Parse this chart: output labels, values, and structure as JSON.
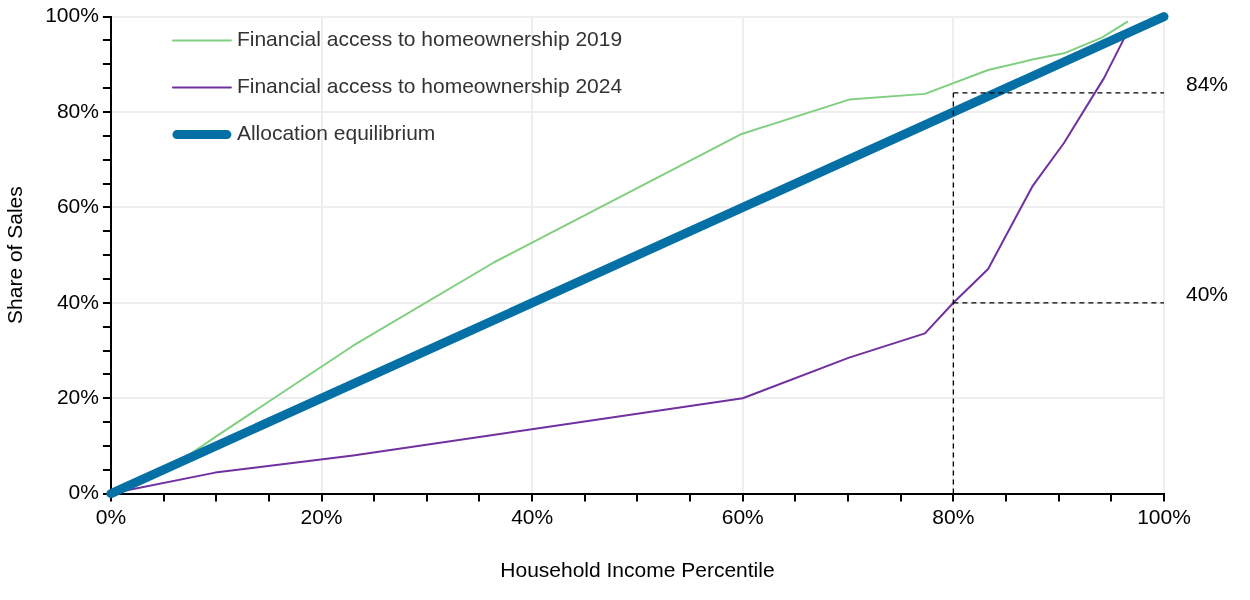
{
  "chart_data": {
    "type": "line",
    "xlabel": "Household Income Percentile",
    "ylabel": "Share of Sales",
    "xlim": [
      0,
      100
    ],
    "ylim": [
      0,
      100
    ],
    "xticks": [
      {
        "value": 0,
        "label": "0%"
      },
      {
        "value": 5,
        "label": null
      },
      {
        "value": 10,
        "label": null
      },
      {
        "value": 15,
        "label": null
      },
      {
        "value": 20,
        "label": "20%"
      },
      {
        "value": 25,
        "label": null
      },
      {
        "value": 30,
        "label": null
      },
      {
        "value": 35,
        "label": null
      },
      {
        "value": 40,
        "label": "40%"
      },
      {
        "value": 45,
        "label": null
      },
      {
        "value": 50,
        "label": null
      },
      {
        "value": 55,
        "label": null
      },
      {
        "value": 60,
        "label": "60%"
      },
      {
        "value": 65,
        "label": null
      },
      {
        "value": 70,
        "label": null
      },
      {
        "value": 75,
        "label": null
      },
      {
        "value": 80,
        "label": "80%"
      },
      {
        "value": 85,
        "label": null
      },
      {
        "value": 90,
        "label": null
      },
      {
        "value": 95,
        "label": null
      },
      {
        "value": 100,
        "label": "100%"
      }
    ],
    "yticks": [
      {
        "value": 0,
        "label": "0%"
      },
      {
        "value": 5,
        "label": null
      },
      {
        "value": 10,
        "label": null
      },
      {
        "value": 15,
        "label": null
      },
      {
        "value": 20,
        "label": "20%"
      },
      {
        "value": 25,
        "label": null
      },
      {
        "value": 30,
        "label": null
      },
      {
        "value": 35,
        "label": null
      },
      {
        "value": 40,
        "label": "40%"
      },
      {
        "value": 45,
        "label": null
      },
      {
        "value": 50,
        "label": null
      },
      {
        "value": 55,
        "label": null
      },
      {
        "value": 60,
        "label": "60%"
      },
      {
        "value": 65,
        "label": null
      },
      {
        "value": 70,
        "label": null
      },
      {
        "value": 75,
        "label": null
      },
      {
        "value": 80,
        "label": "80%"
      },
      {
        "value": 85,
        "label": null
      },
      {
        "value": 90,
        "label": null
      },
      {
        "value": 95,
        "label": null
      },
      {
        "value": 100,
        "label": "100%"
      }
    ],
    "grid": true,
    "legend": "top left",
    "series": [
      {
        "name": "Financial access to homeownership 2019",
        "color": "#80cf80",
        "x": [
          0,
          6,
          10,
          23,
          36.4,
          59.9,
          70.1,
          77.3,
          83.3,
          87.5,
          90.5,
          94.1,
          96.5
        ],
        "values": [
          0,
          6,
          12,
          31,
          48.5,
          75.4,
          82.6,
          83.8,
          88.8,
          91,
          92.3,
          95.6,
          98.9
        ]
      },
      {
        "name": "Financial access to homeownership 2024",
        "color": "#7030a0",
        "x": [
          0,
          9.9,
          23,
          60,
          70.1,
          77.3,
          80,
          83.3,
          87.5,
          90.5,
          94.3,
          96.3,
          100
        ],
        "values": [
          0,
          4.4,
          8,
          20,
          28.5,
          33.6,
          40,
          47.1,
          64.4,
          73.5,
          87.1,
          95.8,
          100
        ]
      },
      {
        "name": "Allocation equilibrium",
        "color": "#0570a5",
        "x": [
          0,
          100
        ],
        "values": [
          0,
          100
        ]
      }
    ],
    "ref_lines": [
      {
        "axis": "x",
        "value": 80,
        "line_style": "dashed",
        "color": "#000000"
      },
      {
        "axis": "y",
        "value": 84,
        "label": "84%",
        "line_style": "dashed",
        "color": "#000000"
      },
      {
        "axis": "y",
        "value": 40,
        "label": "40%",
        "line_style": "dashed",
        "color": "#000000"
      }
    ]
  }
}
